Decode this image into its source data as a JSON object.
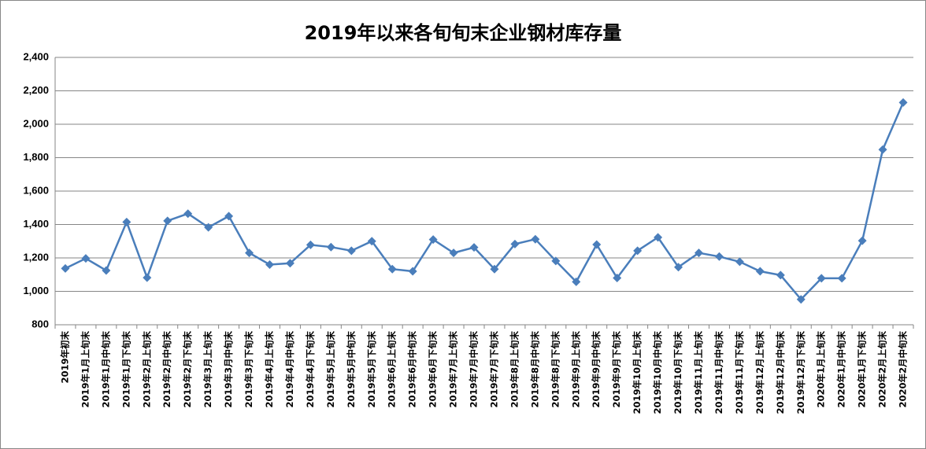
{
  "chart_data": {
    "type": "line",
    "title": "2019年以来各旬旬末企业钢材库存量",
    "categories": [
      "2019年初末",
      "2019年1月上旬末",
      "2019年1月中旬末",
      "2019年1月下旬末",
      "2019年2月上旬末",
      "2019年2月中旬末",
      "2019年2月下旬末",
      "2019年3月上旬末",
      "2019年3月中旬末",
      "2019年3月下旬末",
      "2019年4月上旬末",
      "2019年4月中旬末",
      "2019年4月下旬末",
      "2019年5月上旬末",
      "2019年5月中旬末",
      "2019年5月下旬末",
      "2019年6月上旬末",
      "2019年6月中旬末",
      "2019年6月下旬末",
      "2019年7月上旬末",
      "2019年7月中旬末",
      "2019年7月下旬末",
      "2019年8月上旬末",
      "2019年8月中旬末",
      "2019年8月下旬末",
      "2019年9月上旬末",
      "2019年9月中旬末",
      "2019年9月下旬末",
      "2019年10月上旬末",
      "2019年10月中旬末",
      "2019年10月下旬末",
      "2019年11月上旬末",
      "2019年11月中旬末",
      "2019年11月下旬末",
      "2019年12月上旬末",
      "2019年12月中旬末",
      "2019年12月下旬末",
      "2020年1月上旬末",
      "2020年1月中旬末",
      "2020年1月下旬末",
      "2020年2月上旬末",
      "2020年2月中旬末"
    ],
    "values": [
      1137,
      1197,
      1125,
      1415,
      1082,
      1422,
      1465,
      1383,
      1450,
      1230,
      1160,
      1168,
      1278,
      1265,
      1243,
      1300,
      1133,
      1120,
      1310,
      1230,
      1263,
      1133,
      1283,
      1312,
      1182,
      1057,
      1280,
      1080,
      1243,
      1323,
      1145,
      1230,
      1208,
      1177,
      1120,
      1097,
      952,
      1078,
      1078,
      1303,
      1848,
      2130
    ],
    "color": "#4a7ebb",
    "ylim": [
      800,
      2400
    ],
    "yticks": [
      {
        "value": 800,
        "label": "800"
      },
      {
        "value": 1000,
        "label": "1,000"
      },
      {
        "value": 1200,
        "label": "1,200"
      },
      {
        "value": 1400,
        "label": "1,400"
      },
      {
        "value": 1600,
        "label": "1,600"
      },
      {
        "value": 1800,
        "label": "1,800"
      },
      {
        "value": 2000,
        "label": "2,000"
      },
      {
        "value": 2200,
        "label": "2,200"
      },
      {
        "value": 2400,
        "label": "2,400"
      }
    ],
    "grid": true
  }
}
